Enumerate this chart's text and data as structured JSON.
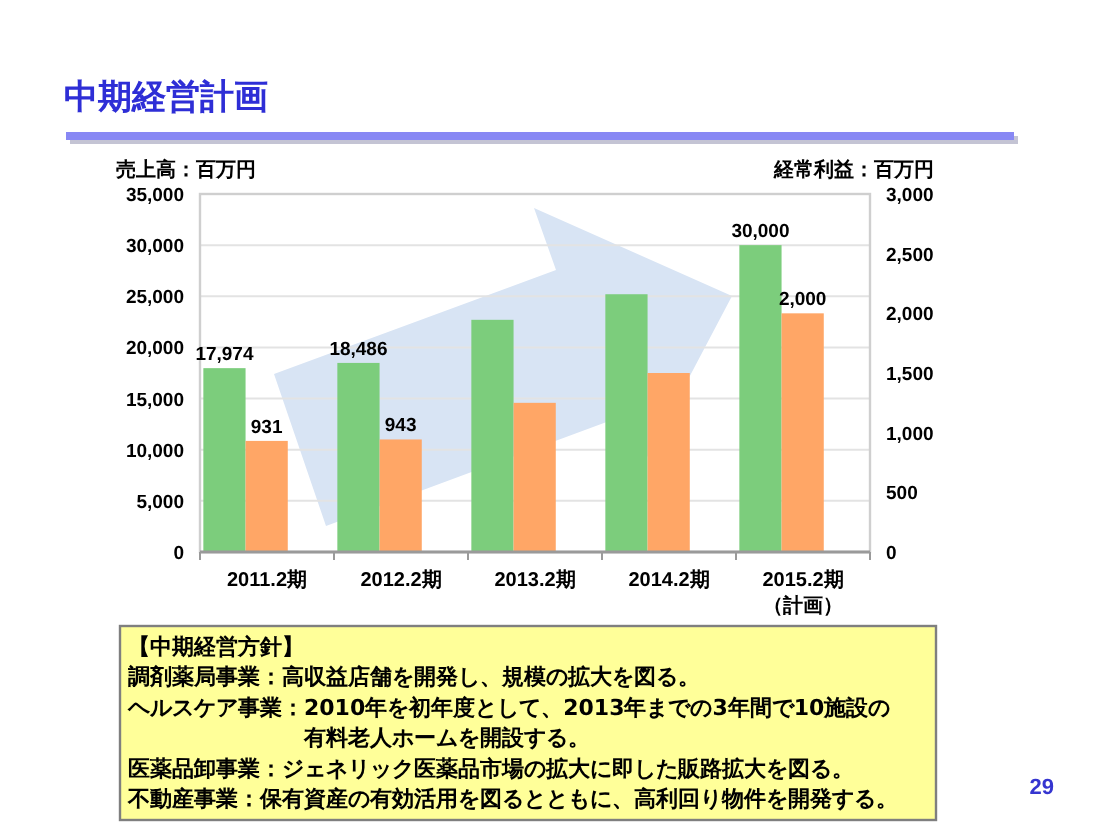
{
  "chart_data": [
    {
      "type": "bar",
      "title": "中期経営計画",
      "ylabel": "売上高：百万円",
      "y2label": "経常利益：百万円",
      "categories": [
        "2011.2期",
        "2012.2期",
        "2013.2期",
        "2014.2期",
        "2015.2期（計画）"
      ],
      "series": [
        {
          "color": "#7ccd7c",
          "values": [
            17974,
            18486,
            22700,
            25200,
            30000
          ],
          "value_labels": [
            "17,974",
            "18,486",
            null,
            null,
            "30,000"
          ]
        },
        {
          "color": "#ffa666",
          "axis": "y2",
          "values": [
            931,
            943,
            1250,
            1500,
            2000
          ],
          "value_labels": [
            "931",
            "943",
            null,
            null,
            "2,000"
          ]
        }
      ],
      "ylim": [
        0,
        35000
      ],
      "yticks": [
        0,
        {
          "value": 5000,
          "label": "5,000"
        },
        {
          "value": 10000,
          "label": "10,000"
        },
        {
          "value": 15000,
          "label": "15,000"
        },
        {
          "value": 20000,
          "label": "20,000"
        },
        {
          "value": 25000,
          "label": "25,000"
        },
        {
          "value": 30000,
          "label": "30,000"
        },
        {
          "value": 35000,
          "label": "35,000"
        }
      ],
      "y2lim": [
        0,
        3000
      ],
      "y2ticks": [
        0,
        500,
        {
          "value": 1000,
          "label": "1,000"
        },
        {
          "value": 1500,
          "label": "1,500"
        },
        {
          "value": 2000,
          "label": "2,000"
        },
        {
          "value": 2500,
          "label": "2,500"
        },
        {
          "value": 3000,
          "label": "3,000"
        }
      ],
      "grid": "y",
      "annotations": [
        "29"
      ]
    },
    {
      "type": "other",
      "title": "【中期経営方針】",
      "annotations": [
        "調剤薬局事業：高収益店舗を開発し、規模の拡大を図る。",
        "ヘルスケア事業：2010年を初年度として、2013年までの3年間で10施設の有料老人ホームを開設する。",
        "医薬品卸事業：ジェネリック医薬品市場の拡大に即した販路拡大を図る。",
        "不動産事業：保有資産の有効活用を図るとともに、高利回り物件を開発する。"
      ]
    }
  ]
}
